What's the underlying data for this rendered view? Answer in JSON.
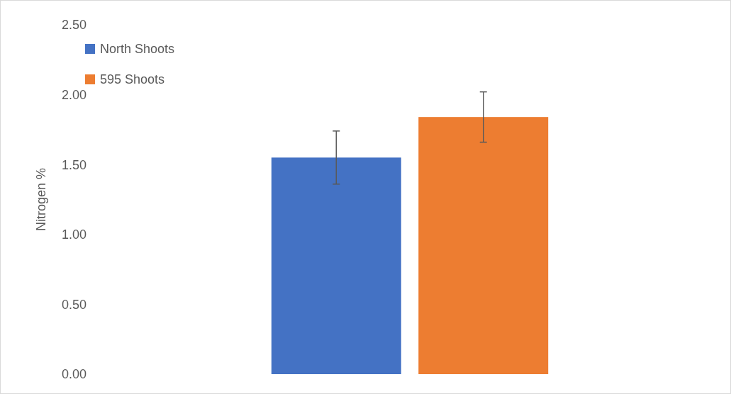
{
  "chart_data": {
    "type": "bar",
    "ylabel": "Nitrogen %",
    "categories": [
      null
    ],
    "series": [
      {
        "name": "North Shoots",
        "color": "#4472c4",
        "values": [
          1.55
        ],
        "errors": [
          0.19
        ]
      },
      {
        "name": "595 Shoots",
        "color": "#ed7d31",
        "values": [
          1.84
        ],
        "errors": [
          0.18
        ]
      }
    ],
    "ylim": [
      0,
      2.5
    ],
    "yticks": [
      {
        "value": 0,
        "label": "0.00"
      },
      {
        "value": 0.5,
        "label": "0.50"
      },
      {
        "value": 1,
        "label": "1.00"
      },
      {
        "value": 1.5,
        "label": "1.50"
      },
      {
        "value": 2,
        "label": "2.00"
      },
      {
        "value": 2.5,
        "label": "2.50"
      }
    ],
    "grid": false,
    "legend": "top left"
  }
}
